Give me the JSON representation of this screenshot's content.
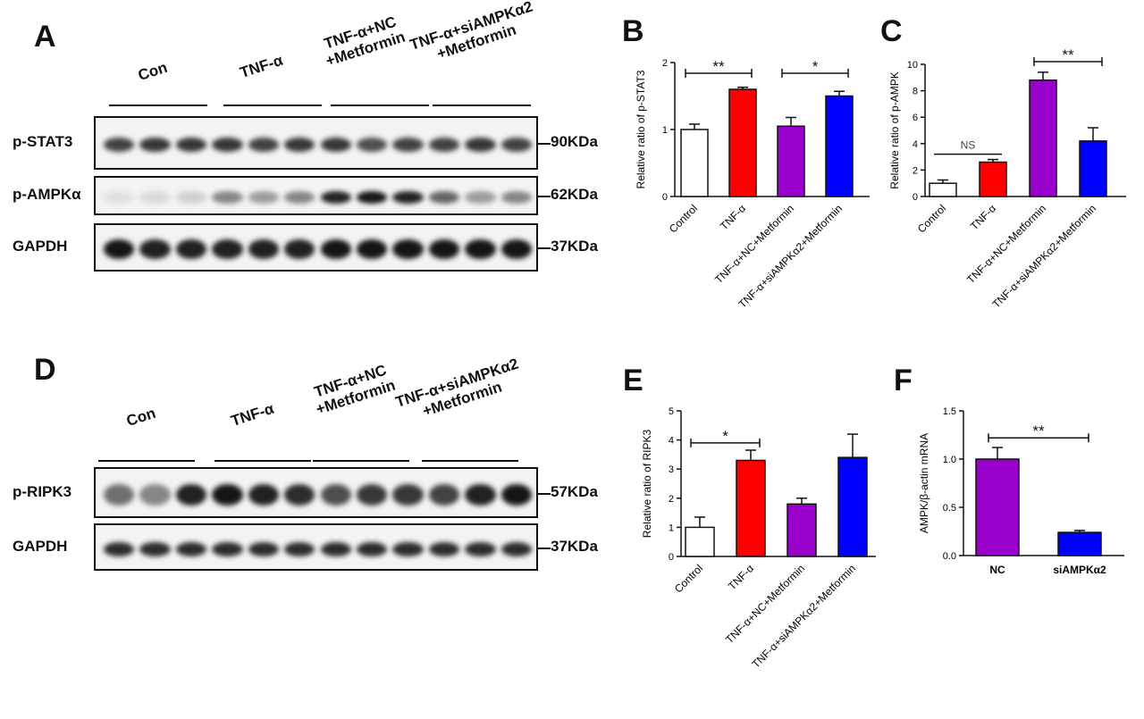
{
  "panels": {
    "A": "A",
    "B": "B",
    "C": "C",
    "D": "D",
    "E": "E",
    "F": "F"
  },
  "blot_A": {
    "groups": [
      "Con",
      "TNF-α",
      "TNF-α+NC\n+Metformin",
      "TNF-α+siAMPKα2\n+Metformin"
    ],
    "rows": [
      {
        "label": "p-STAT3",
        "marker": "90KDa",
        "intensity": [
          0.75,
          0.8,
          0.8,
          0.8,
          0.75,
          0.8,
          0.8,
          0.7,
          0.75,
          0.75,
          0.8,
          0.75
        ]
      },
      {
        "label": "p-AMPKα",
        "marker": "62KDa",
        "intensity": [
          0.05,
          0.08,
          0.12,
          0.45,
          0.35,
          0.45,
          0.9,
          0.95,
          0.9,
          0.6,
          0.35,
          0.45
        ]
      },
      {
        "label": "GAPDH",
        "marker": "37KDa",
        "intensity": [
          0.95,
          0.9,
          0.9,
          0.9,
          0.9,
          0.9,
          0.95,
          0.95,
          0.95,
          0.95,
          0.95,
          0.95
        ]
      }
    ]
  },
  "blot_D": {
    "groups": [
      "Con",
      "TNF-α",
      "TNF-α+NC\n+Metformin",
      "TNF-α+siAMPKα2\n+Metformin"
    ],
    "rows": [
      {
        "label": "p-RIPK3",
        "marker": "57KDa",
        "intensity": [
          0.55,
          0.45,
          0.9,
          0.95,
          0.9,
          0.85,
          0.7,
          0.8,
          0.8,
          0.75,
          0.9,
          0.95
        ]
      },
      {
        "label": "GAPDH",
        "marker": "37KDa",
        "intensity": [
          0.85,
          0.85,
          0.85,
          0.85,
          0.85,
          0.85,
          0.85,
          0.85,
          0.85,
          0.85,
          0.85,
          0.85
        ]
      }
    ]
  },
  "chart_data": [
    {
      "panel": "B",
      "type": "bar",
      "categories": [
        "Control",
        "TNF-α",
        "TNF-α+NC+Metformin",
        "TNF-α+siAMPKα2+Metformin"
      ],
      "values": [
        1.0,
        1.6,
        1.05,
        1.5
      ],
      "errors": [
        0.08,
        0.03,
        0.13,
        0.07
      ],
      "colors": [
        "#ffffff",
        "#ff0000",
        "#9900cc",
        "#0000ff"
      ],
      "ylabel": "Relative ratio of p-STAT3",
      "ylim": [
        0,
        2
      ],
      "yticks": [
        0,
        1,
        2
      ],
      "significance": [
        {
          "from": 0,
          "to": 1,
          "label": "**",
          "y": 1.84
        },
        {
          "from": 2,
          "to": 3,
          "label": "*",
          "y": 1.84
        }
      ]
    },
    {
      "panel": "C",
      "type": "bar",
      "categories": [
        "Control",
        "TNF-α",
        "TNF-α+NC+Metformin",
        "TNF-α+siAMPKα2+Metformin"
      ],
      "values": [
        1.0,
        2.6,
        8.8,
        4.2
      ],
      "errors": [
        0.25,
        0.2,
        0.6,
        1.0
      ],
      "colors": [
        "#ffffff",
        "#ff0000",
        "#9900cc",
        "#0000ff"
      ],
      "ylabel": "Relative ratio of p-AMPK",
      "ylim": [
        0,
        10
      ],
      "yticks": [
        0,
        2,
        4,
        6,
        8,
        10
      ],
      "significance": [
        {
          "from": 0,
          "to": 1,
          "label": "NS",
          "y": 3.2
        },
        {
          "from": 2,
          "to": 3,
          "label": "**",
          "y": 10.2
        }
      ]
    },
    {
      "panel": "E",
      "type": "bar",
      "categories": [
        "Control",
        "TNF-α",
        "TNF-α+NC+Metformin",
        "TNF-α+siAMPKα2+Metformin"
      ],
      "values": [
        1.0,
        3.3,
        1.8,
        3.4
      ],
      "errors": [
        0.35,
        0.35,
        0.2,
        0.8
      ],
      "colors": [
        "#ffffff",
        "#ff0000",
        "#9900cc",
        "#0000ff"
      ],
      "ylabel": "Relative ratio of RIPK3",
      "ylim": [
        0,
        5
      ],
      "yticks": [
        0,
        1,
        2,
        3,
        4,
        5
      ],
      "significance": [
        {
          "from": 0,
          "to": 1,
          "label": "*",
          "y": 3.9
        }
      ]
    },
    {
      "panel": "F",
      "type": "bar",
      "categories": [
        "NC",
        "siAMPKα2"
      ],
      "values": [
        1.0,
        0.24
      ],
      "errors": [
        0.12,
        0.02
      ],
      "colors": [
        "#9900cc",
        "#0000ff"
      ],
      "ylabel": "AMPK/β-actin mRNA",
      "ylim": [
        0,
        1.5
      ],
      "yticks": [
        0.0,
        0.5,
        1.0,
        1.5
      ],
      "significance": [
        {
          "from": 0,
          "to": 1,
          "label": "**",
          "y": 1.22
        }
      ]
    }
  ]
}
